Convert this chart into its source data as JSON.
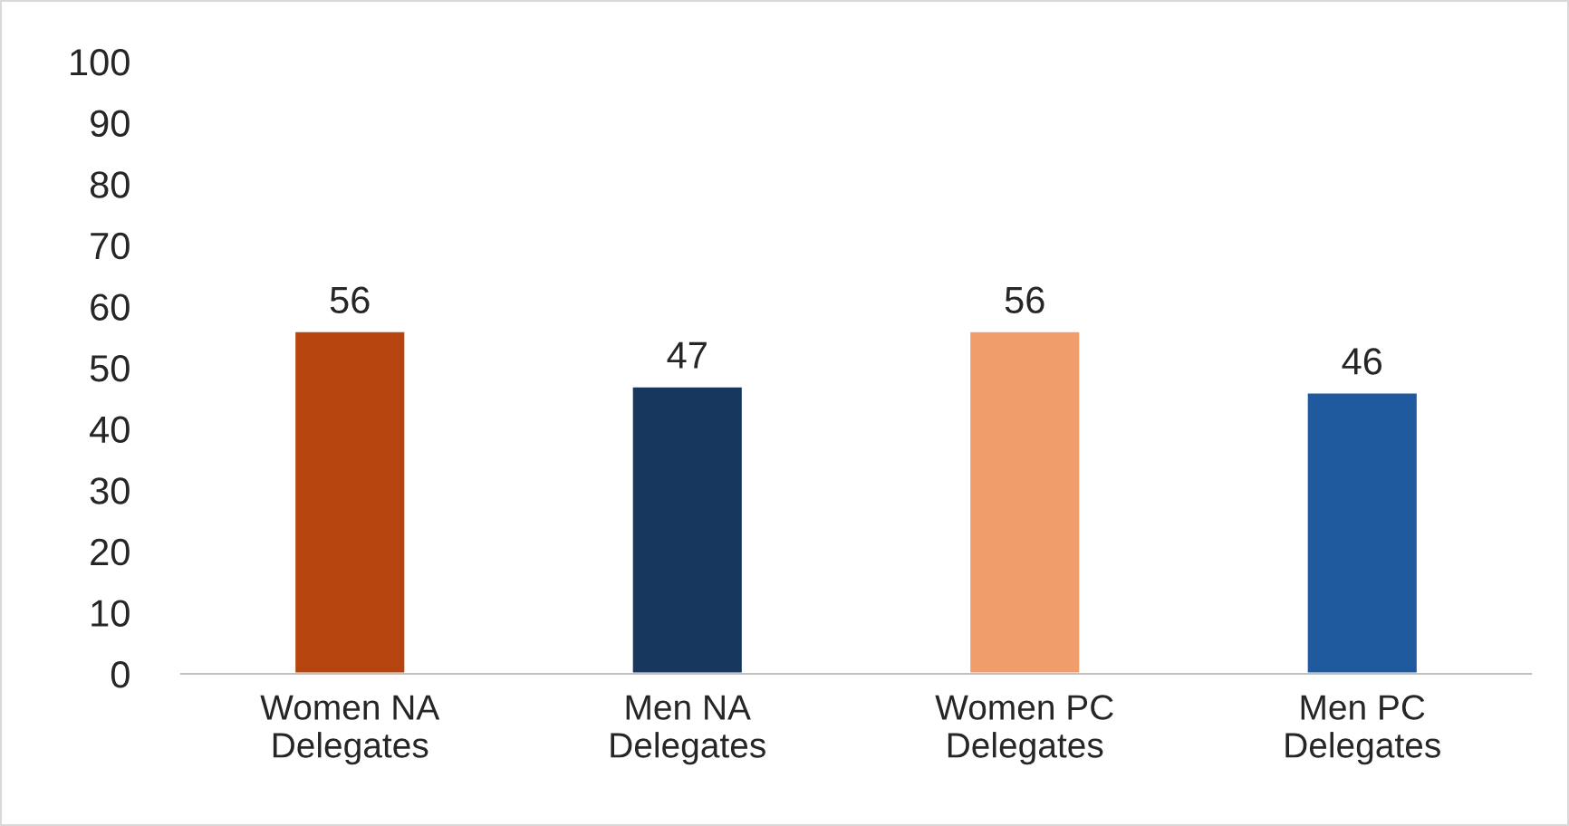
{
  "chart_data": {
    "type": "bar",
    "categories": [
      "Women NA\nDelegates",
      "Men NA\nDelegates",
      "Women PC\nDelegates",
      "Men PC\nDelegates"
    ],
    "values": [
      56,
      47,
      56,
      46
    ],
    "colors": [
      "#b5440f",
      "#17375e",
      "#f09c6b",
      "#1f5a9e"
    ],
    "ylim": [
      0,
      100
    ],
    "yticks": [
      0,
      10,
      20,
      30,
      40,
      50,
      60,
      70,
      80,
      90,
      100
    ],
    "data_labels": true,
    "grid": false,
    "legend": false
  }
}
